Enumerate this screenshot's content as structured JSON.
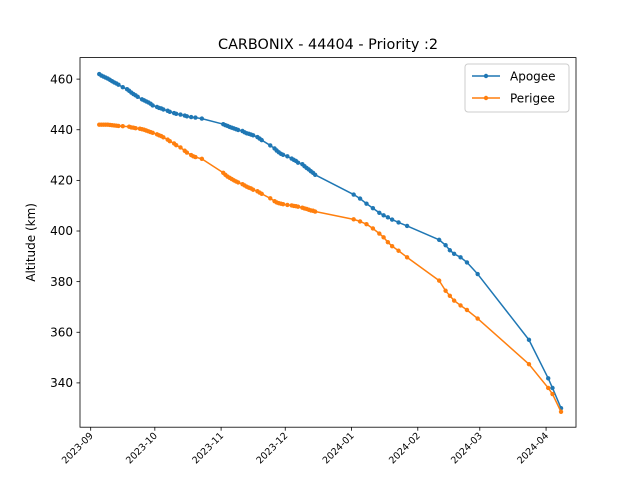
{
  "chart_data": {
    "type": "line",
    "title": "CARBONIX - 44404 - Priority :2",
    "xlabel": "",
    "ylabel": "Altitude (km)",
    "xlim": [
      "2023-08-27",
      "2024-04-15"
    ],
    "ylim": [
      322.5,
      468.5
    ],
    "yticks": [
      340,
      360,
      380,
      400,
      420,
      440,
      460
    ],
    "xticks": [
      "2023-09",
      "2023-10",
      "2023-11",
      "2023-12",
      "2024-01",
      "2024-02",
      "2024-03",
      "2024-04"
    ],
    "legend": "top-right",
    "grid": false,
    "series": [
      {
        "name": "Apogee",
        "color": "#1f77b4",
        "points": [
          [
            "2023-09-05",
            462.0
          ],
          [
            "2023-09-06",
            461.4
          ],
          [
            "2023-09-07",
            461.0
          ],
          [
            "2023-09-08",
            460.6
          ],
          [
            "2023-09-09",
            460.2
          ],
          [
            "2023-09-10",
            459.7
          ],
          [
            "2023-09-11",
            459.2
          ],
          [
            "2023-09-12",
            458.7
          ],
          [
            "2023-09-13",
            458.3
          ],
          [
            "2023-09-14",
            457.8
          ],
          [
            "2023-09-16",
            456.8
          ],
          [
            "2023-09-18",
            456.0
          ],
          [
            "2023-09-19",
            455.4
          ],
          [
            "2023-09-20",
            454.7
          ],
          [
            "2023-09-21",
            454.1
          ],
          [
            "2023-09-22",
            453.6
          ],
          [
            "2023-09-23",
            453.0
          ],
          [
            "2023-09-25",
            452.0
          ],
          [
            "2023-09-26",
            451.6
          ],
          [
            "2023-09-27",
            451.2
          ],
          [
            "2023-09-28",
            450.8
          ],
          [
            "2023-09-29",
            450.3
          ],
          [
            "2023-09-30",
            449.6
          ],
          [
            "2023-10-02",
            449.0
          ],
          [
            "2023-10-03",
            448.6
          ],
          [
            "2023-10-04",
            448.4
          ],
          [
            "2023-10-05",
            448.0
          ],
          [
            "2023-10-07",
            447.5
          ],
          [
            "2023-10-08",
            447.1
          ],
          [
            "2023-10-10",
            446.6
          ],
          [
            "2023-10-11",
            446.3
          ],
          [
            "2023-10-13",
            446.0
          ],
          [
            "2023-10-15",
            445.6
          ],
          [
            "2023-10-16",
            445.3
          ],
          [
            "2023-10-18",
            445.0
          ],
          [
            "2023-10-20",
            444.8
          ],
          [
            "2023-10-23",
            444.4
          ],
          [
            "2023-11-02",
            442.2
          ],
          [
            "2023-11-03",
            441.8
          ],
          [
            "2023-11-04",
            441.5
          ],
          [
            "2023-11-05",
            441.1
          ],
          [
            "2023-11-06",
            440.8
          ],
          [
            "2023-11-07",
            440.5
          ],
          [
            "2023-11-08",
            440.2
          ],
          [
            "2023-11-09",
            439.9
          ],
          [
            "2023-11-11",
            439.5
          ],
          [
            "2023-11-12",
            439.0
          ],
          [
            "2023-11-13",
            438.6
          ],
          [
            "2023-11-14",
            438.4
          ],
          [
            "2023-11-15",
            438.1
          ],
          [
            "2023-11-16",
            437.8
          ],
          [
            "2023-11-18",
            437.1
          ],
          [
            "2023-11-19",
            436.5
          ],
          [
            "2023-11-20",
            435.9
          ],
          [
            "2023-11-24",
            433.8
          ],
          [
            "2023-11-26",
            432.6
          ],
          [
            "2023-11-27",
            431.8
          ],
          [
            "2023-11-28",
            431.1
          ],
          [
            "2023-11-29",
            430.5
          ],
          [
            "2023-11-30",
            430.1
          ],
          [
            "2023-12-02",
            429.5
          ],
          [
            "2023-12-04",
            428.6
          ],
          [
            "2023-12-05",
            428.1
          ],
          [
            "2023-12-06",
            427.7
          ],
          [
            "2023-12-07",
            427.0
          ],
          [
            "2023-12-09",
            426.4
          ],
          [
            "2023-12-10",
            425.6
          ],
          [
            "2023-12-11",
            424.9
          ],
          [
            "2023-12-12",
            424.3
          ],
          [
            "2023-12-13",
            423.6
          ],
          [
            "2023-12-14",
            423.0
          ],
          [
            "2023-12-15",
            422.2
          ],
          [
            "2024-01-02",
            414.4
          ],
          [
            "2024-01-05",
            412.8
          ],
          [
            "2024-01-08",
            410.8
          ],
          [
            "2024-01-11",
            409.0
          ],
          [
            "2024-01-14",
            407.2
          ],
          [
            "2024-01-16",
            406.2
          ],
          [
            "2024-01-18",
            405.4
          ],
          [
            "2024-01-20",
            404.5
          ],
          [
            "2024-01-23",
            403.4
          ],
          [
            "2024-01-27",
            402.0
          ],
          [
            "2024-02-11",
            396.5
          ],
          [
            "2024-02-14",
            394.4
          ],
          [
            "2024-02-16",
            392.4
          ],
          [
            "2024-02-18",
            391.0
          ],
          [
            "2024-02-21",
            389.6
          ],
          [
            "2024-02-24",
            387.6
          ],
          [
            "2024-02-29",
            383.0
          ],
          [
            "2024-03-24",
            357.0
          ],
          [
            "2024-04-02",
            341.8
          ],
          [
            "2024-04-04",
            338.0
          ],
          [
            "2024-04-08",
            330.0
          ]
        ]
      },
      {
        "name": "Perigee",
        "color": "#ff7f0e",
        "points": [
          [
            "2023-09-05",
            442.0
          ],
          [
            "2023-09-06",
            442.0
          ],
          [
            "2023-09-07",
            442.0
          ],
          [
            "2023-09-08",
            442.0
          ],
          [
            "2023-09-09",
            442.0
          ],
          [
            "2023-09-10",
            441.9
          ],
          [
            "2023-09-11",
            441.8
          ],
          [
            "2023-09-12",
            441.7
          ],
          [
            "2023-09-13",
            441.6
          ],
          [
            "2023-09-14",
            441.5
          ],
          [
            "2023-09-16",
            441.4
          ],
          [
            "2023-09-19",
            441.2
          ],
          [
            "2023-09-20",
            440.9
          ],
          [
            "2023-09-21",
            440.8
          ],
          [
            "2023-09-22",
            440.6
          ],
          [
            "2023-09-24",
            440.4
          ],
          [
            "2023-09-25",
            440.2
          ],
          [
            "2023-09-26",
            440.0
          ],
          [
            "2023-09-27",
            439.7
          ],
          [
            "2023-09-28",
            439.4
          ],
          [
            "2023-09-29",
            439.1
          ],
          [
            "2023-09-30",
            438.8
          ],
          [
            "2023-10-02",
            438.2
          ],
          [
            "2023-10-03",
            437.8
          ],
          [
            "2023-10-04",
            437.5
          ],
          [
            "2023-10-05",
            437.0
          ],
          [
            "2023-10-07",
            436.1
          ],
          [
            "2023-10-08",
            435.5
          ],
          [
            "2023-10-10",
            434.6
          ],
          [
            "2023-10-11",
            433.9
          ],
          [
            "2023-10-13",
            433.0
          ],
          [
            "2023-10-15",
            431.7
          ],
          [
            "2023-10-16",
            431.0
          ],
          [
            "2023-10-18",
            430.0
          ],
          [
            "2023-10-19",
            429.5
          ],
          [
            "2023-10-20",
            429.2
          ],
          [
            "2023-10-23",
            428.5
          ],
          [
            "2023-11-02",
            423.0
          ],
          [
            "2023-11-03",
            422.2
          ],
          [
            "2023-11-04",
            421.5
          ],
          [
            "2023-11-05",
            421.0
          ],
          [
            "2023-11-06",
            420.5
          ],
          [
            "2023-11-07",
            420.0
          ],
          [
            "2023-11-08",
            419.6
          ],
          [
            "2023-11-09",
            419.2
          ],
          [
            "2023-11-11",
            418.5
          ],
          [
            "2023-11-12",
            418.0
          ],
          [
            "2023-11-13",
            417.5
          ],
          [
            "2023-11-14",
            417.1
          ],
          [
            "2023-11-15",
            416.8
          ],
          [
            "2023-11-16",
            416.3
          ],
          [
            "2023-11-18",
            415.7
          ],
          [
            "2023-11-19",
            415.2
          ],
          [
            "2023-11-20",
            414.7
          ],
          [
            "2023-11-24",
            412.9
          ],
          [
            "2023-11-26",
            411.8
          ],
          [
            "2023-11-27",
            411.3
          ],
          [
            "2023-11-28",
            411.0
          ],
          [
            "2023-11-29",
            410.8
          ],
          [
            "2023-11-30",
            410.6
          ],
          [
            "2023-12-02",
            410.3
          ],
          [
            "2023-12-04",
            410.1
          ],
          [
            "2023-12-05",
            409.9
          ],
          [
            "2023-12-06",
            409.8
          ],
          [
            "2023-12-07",
            409.6
          ],
          [
            "2023-12-09",
            409.2
          ],
          [
            "2023-12-10",
            408.9
          ],
          [
            "2023-12-11",
            408.7
          ],
          [
            "2023-12-12",
            408.4
          ],
          [
            "2023-12-13",
            408.1
          ],
          [
            "2023-12-14",
            408.0
          ],
          [
            "2023-12-15",
            407.7
          ],
          [
            "2024-01-02",
            404.6
          ],
          [
            "2024-01-05",
            403.8
          ],
          [
            "2024-01-08",
            402.7
          ],
          [
            "2024-01-11",
            401.0
          ],
          [
            "2024-01-14",
            399.0
          ],
          [
            "2024-01-16",
            397.5
          ],
          [
            "2024-01-18",
            395.6
          ],
          [
            "2024-01-20",
            394.0
          ],
          [
            "2024-01-23",
            392.2
          ],
          [
            "2024-01-27",
            389.6
          ],
          [
            "2024-02-11",
            380.4
          ],
          [
            "2024-02-14",
            376.4
          ],
          [
            "2024-02-16",
            374.4
          ],
          [
            "2024-02-18",
            372.5
          ],
          [
            "2024-02-21",
            370.6
          ],
          [
            "2024-02-24",
            368.8
          ],
          [
            "2024-02-29",
            365.4
          ],
          [
            "2024-03-24",
            347.4
          ],
          [
            "2024-04-02",
            338.0
          ],
          [
            "2024-04-04",
            335.6
          ],
          [
            "2024-04-08",
            328.6
          ]
        ]
      }
    ]
  }
}
